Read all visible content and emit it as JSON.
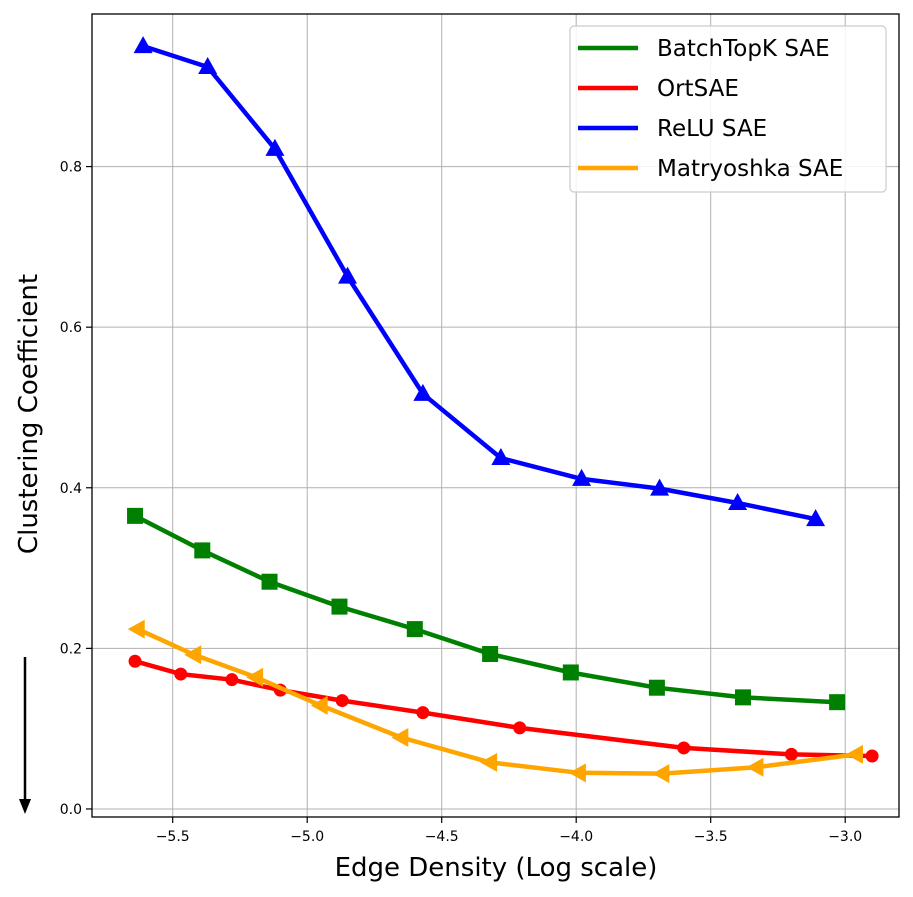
{
  "chart_data": {
    "type": "line",
    "title": "",
    "xlabel": "Edge Density (Log scale)",
    "ylabel": "Clustering Coefficient",
    "xlim": [
      -5.8,
      -2.8
    ],
    "ylim": [
      -0.01,
      0.99
    ],
    "xticks": [
      -5.5,
      -5.0,
      -4.5,
      -4.0,
      -3.5,
      -3.0
    ],
    "xtick_labels": [
      "−5.5",
      "−5.0",
      "−4.5",
      "−4.0",
      "−3.5",
      "−3.0"
    ],
    "yticks": [
      0.0,
      0.2,
      0.4,
      0.6,
      0.8
    ],
    "ytick_labels": [
      "0.0",
      "0.2",
      "0.4",
      "0.6",
      "0.8"
    ],
    "grid": true,
    "legend_position": "top-right",
    "series": [
      {
        "name": "BatchTopK SAE",
        "color": "#008000",
        "marker": "square",
        "x": [
          -5.64,
          -5.39,
          -5.14,
          -4.88,
          -4.6,
          -4.32,
          -4.02,
          -3.7,
          -3.38,
          -3.03
        ],
        "y": [
          0.365,
          0.322,
          0.283,
          0.252,
          0.224,
          0.193,
          0.17,
          0.151,
          0.139,
          0.133
        ]
      },
      {
        "name": "OrtSAE",
        "color": "#ff0000",
        "marker": "circle",
        "x": [
          -5.64,
          -5.47,
          -5.28,
          -5.1,
          -4.87,
          -4.57,
          -4.21,
          -3.6,
          -3.2,
          -2.9
        ],
        "y": [
          0.184,
          0.168,
          0.161,
          0.148,
          0.135,
          0.12,
          0.101,
          0.076,
          0.068,
          0.066
        ]
      },
      {
        "name": "ReLU SAE",
        "color": "#0000ff",
        "marker": "triangle-up",
        "x": [
          -5.61,
          -5.37,
          -5.12,
          -4.85,
          -4.57,
          -4.28,
          -3.98,
          -3.69,
          -3.4,
          -3.11
        ],
        "y": [
          0.95,
          0.924,
          0.822,
          0.663,
          0.517,
          0.437,
          0.411,
          0.399,
          0.381,
          0.361
        ]
      },
      {
        "name": "Matryoshka SAE",
        "color": "#ffa500",
        "marker": "triangle-left",
        "x": [
          -5.63,
          -5.42,
          -5.19,
          -4.95,
          -4.65,
          -4.32,
          -3.99,
          -3.68,
          -3.33,
          -2.96
        ],
        "y": [
          0.224,
          0.192,
          0.164,
          0.129,
          0.089,
          0.058,
          0.045,
          0.044,
          0.052,
          0.068
        ]
      }
    ],
    "annotations": [
      {
        "type": "arrow",
        "direction": "down",
        "meaning": "lower is better"
      }
    ]
  }
}
